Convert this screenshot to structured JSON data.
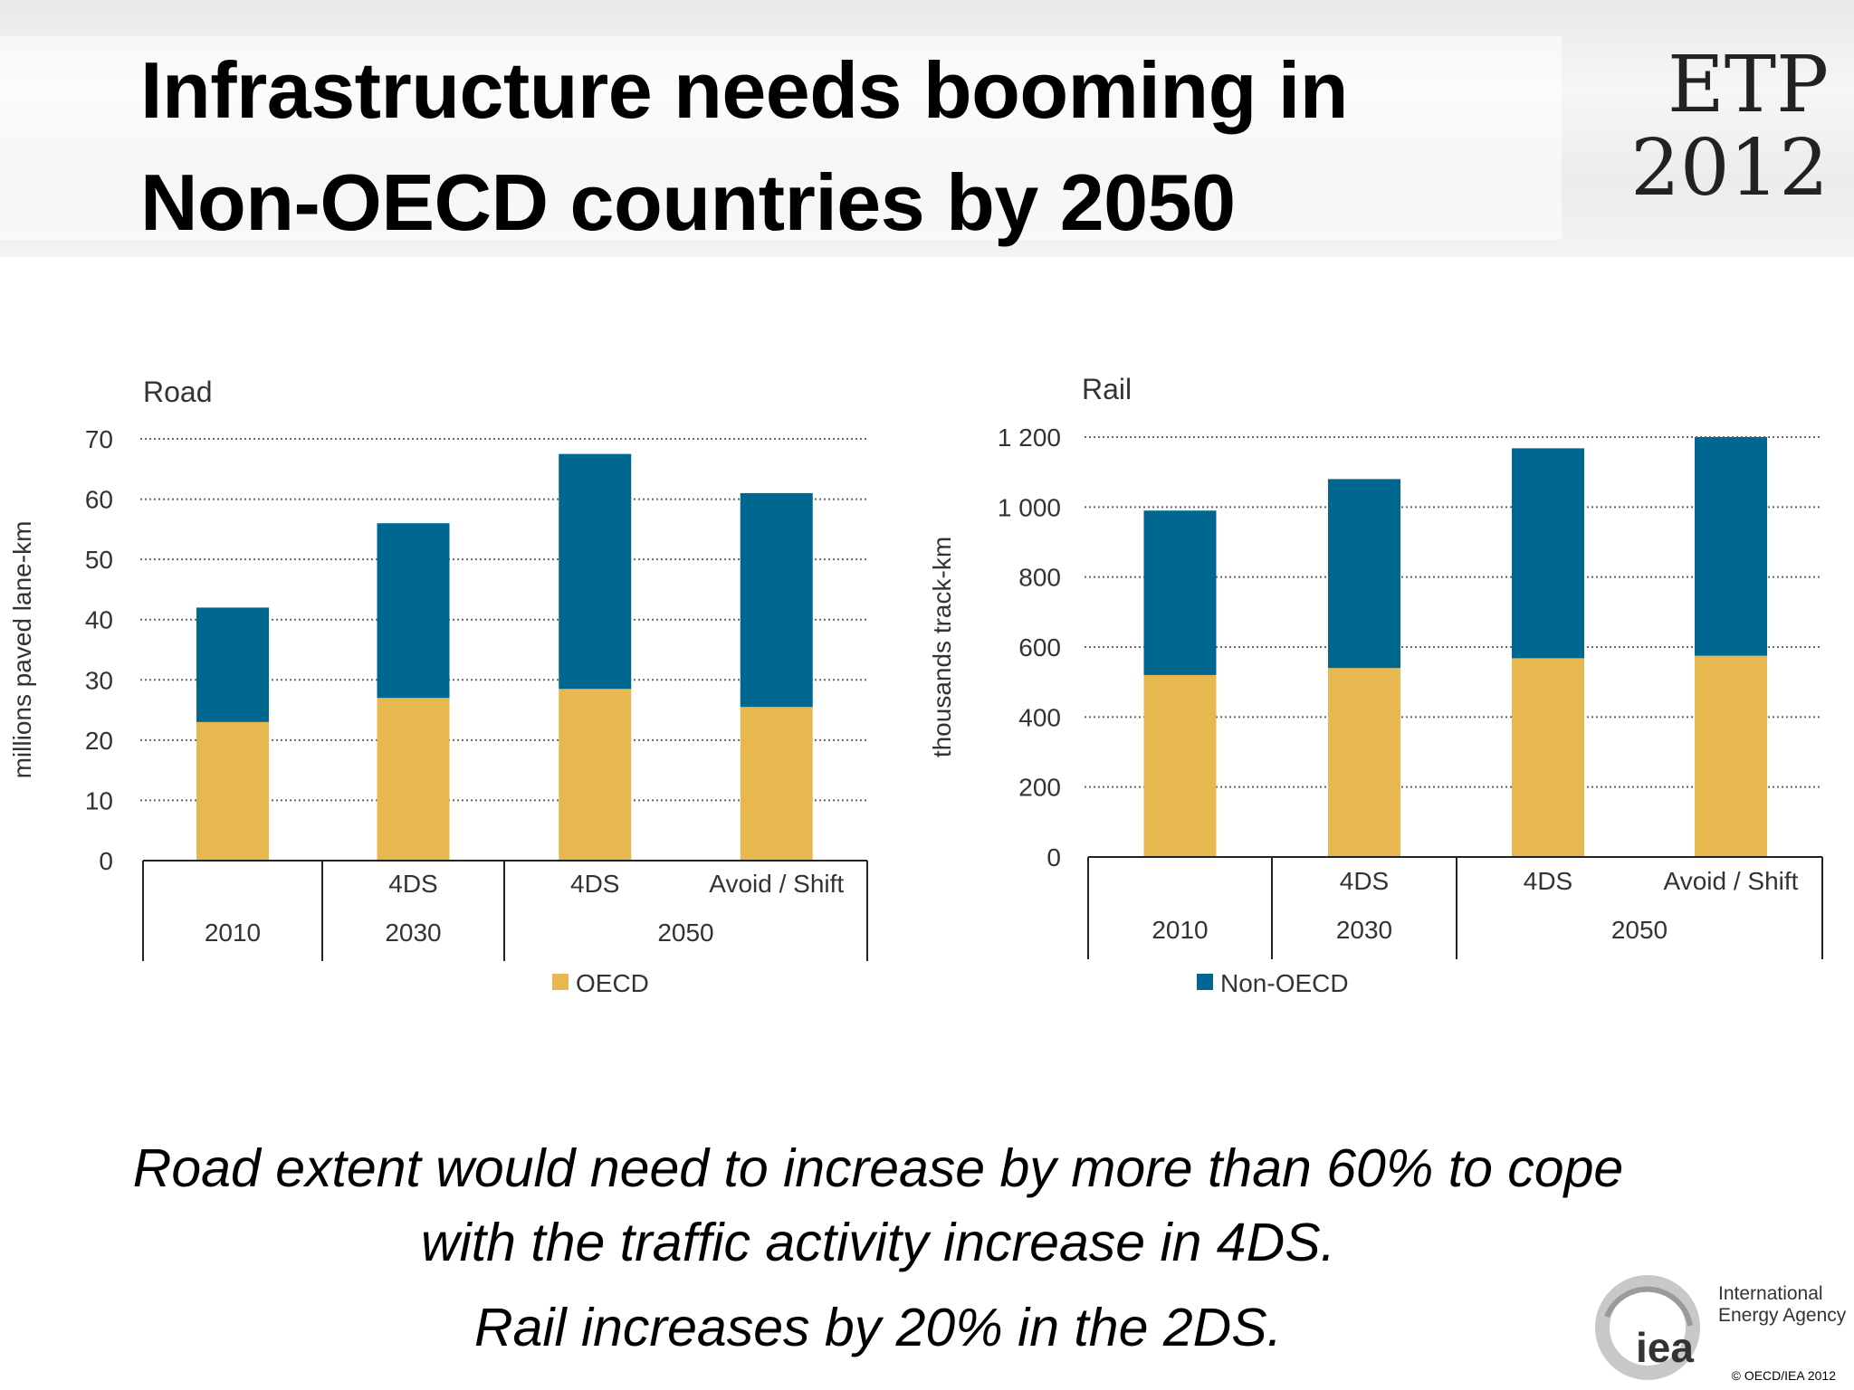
{
  "header": {
    "title_line1": "Infrastructure needs booming in",
    "title_line2": "Non-OECD countries by 2050",
    "etp_line1": "ETP",
    "etp_line2": "2012"
  },
  "colors": {
    "oecd": "#e8b850",
    "non_oecd": "#006890",
    "grid": "#666666",
    "text": "#333333"
  },
  "chart_data": [
    {
      "type": "bar",
      "stacked": true,
      "title": "Road",
      "ylabel": "millions paved lane-km",
      "ylim": [
        0,
        70
      ],
      "yticks": [
        0,
        10,
        20,
        30,
        40,
        50,
        60,
        70
      ],
      "yticklabels": [
        "0",
        "10",
        "20",
        "30",
        "40",
        "50",
        "60",
        "70"
      ],
      "grid": "dotted horizontal",
      "categories": [
        {
          "scenario": "",
          "year": "2010"
        },
        {
          "scenario": "4DS",
          "year": "2030"
        },
        {
          "scenario": "4DS",
          "year": "2050"
        },
        {
          "scenario": "Avoid / Shift",
          "year": "2050"
        }
      ],
      "year_groups": [
        {
          "label": "2010",
          "span": 1
        },
        {
          "label": "2030",
          "span": 1
        },
        {
          "label": "2050",
          "span": 2
        }
      ],
      "series": [
        {
          "name": "OECD",
          "values": [
            23,
            27,
            28.5,
            25.5
          ]
        },
        {
          "name": "Non-OECD",
          "values": [
            19,
            29,
            39,
            35.5
          ]
        }
      ],
      "legend": {
        "position": "bottom",
        "entries": [
          "OECD"
        ]
      }
    },
    {
      "type": "bar",
      "stacked": true,
      "title": "Rail",
      "ylabel": "thousands track-km",
      "ylim": [
        0,
        1200
      ],
      "yticks": [
        0,
        200,
        400,
        600,
        800,
        1000,
        1200
      ],
      "yticklabels": [
        "0",
        "200",
        "400",
        "600",
        "800",
        "1 000",
        "1 200"
      ],
      "grid": "dotted horizontal",
      "categories": [
        {
          "scenario": "",
          "year": "2010"
        },
        {
          "scenario": "4DS",
          "year": "2030"
        },
        {
          "scenario": "4DS",
          "year": "2050"
        },
        {
          "scenario": "Avoid / Shift",
          "year": "2050"
        }
      ],
      "year_groups": [
        {
          "label": "2010",
          "span": 1
        },
        {
          "label": "2030",
          "span": 1
        },
        {
          "label": "2050",
          "span": 2
        }
      ],
      "series": [
        {
          "name": "OECD",
          "values": [
            520,
            540,
            568,
            575
          ]
        },
        {
          "name": "Non-OECD",
          "values": [
            470,
            540,
            600,
            625
          ]
        }
      ],
      "legend": {
        "position": "bottom",
        "entries": [
          "Non-OECD"
        ]
      }
    }
  ],
  "captions": {
    "line1": "Road extent would need to increase by more than 60% to cope",
    "line2": "with the traffic activity increase in 4DS.",
    "line3": "Rail increases by 20% in the 2DS."
  },
  "logo": {
    "short": "iea",
    "line1": "International",
    "line2": "Energy Agency",
    "icon": "iea-swoosh-logo"
  },
  "copyright": "© OECD/IEA 2012"
}
